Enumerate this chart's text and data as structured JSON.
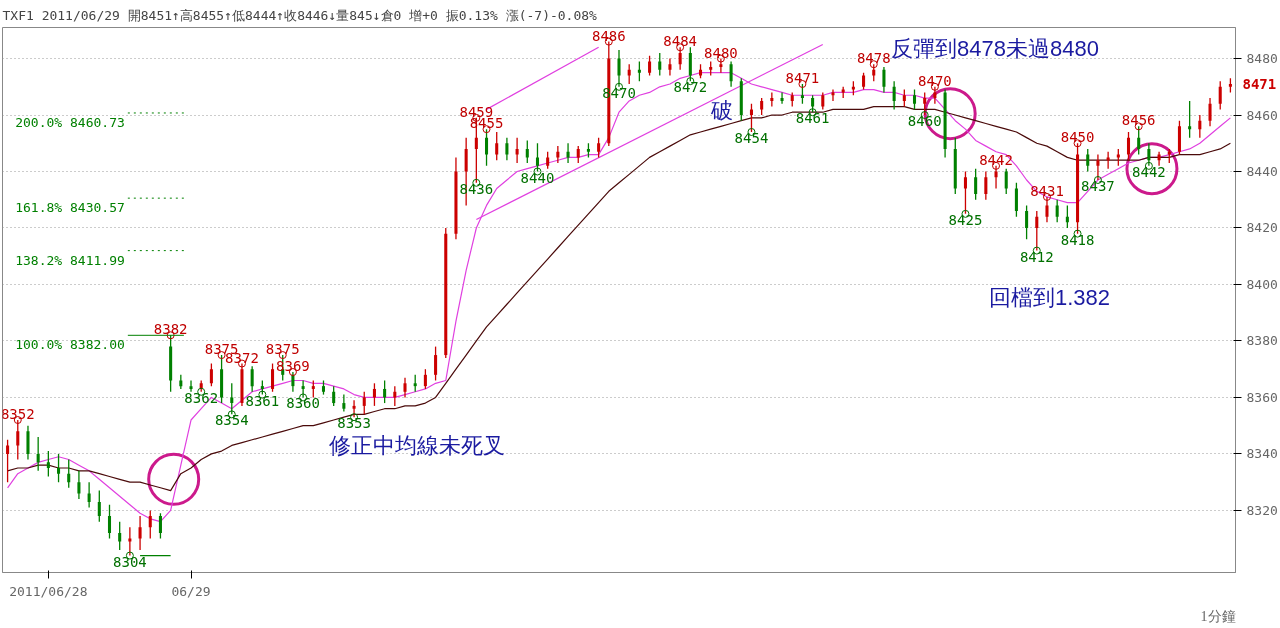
{
  "chart_data": {
    "type": "candlestick",
    "title": "TXF1 2011/06/29 開8451↑高8455↑低8444↑收8446↓量845↓倉0 增+0 振0.13% 漲(-7)-0.08%",
    "categories": [
      null,
      null,
      null,
      null,
      "2011/06/28",
      null,
      null,
      null,
      null,
      null,
      null,
      null,
      null,
      null,
      null,
      null,
      null,
      null,
      "06/29",
      null,
      null,
      null,
      null,
      null,
      null,
      null,
      null,
      null,
      null,
      null,
      null,
      null,
      null,
      null,
      null,
      null,
      null,
      null,
      null,
      null,
      null,
      null,
      null,
      null,
      null,
      null,
      null,
      null,
      null,
      null,
      null,
      null,
      null,
      null,
      null,
      null,
      null,
      null,
      null,
      null,
      null,
      null,
      null,
      null,
      null,
      null,
      null,
      null,
      null,
      null,
      null,
      null,
      null,
      null,
      null,
      null,
      null,
      null,
      null,
      null,
      null,
      null,
      null,
      null,
      null,
      null,
      null,
      null,
      null,
      null,
      null,
      null,
      null,
      null,
      null,
      null,
      null,
      null,
      null,
      null,
      null,
      null,
      null,
      null,
      null,
      null,
      null,
      null,
      null,
      null,
      null,
      null,
      null,
      null,
      null,
      null,
      null,
      null,
      null,
      null,
      null
    ],
    "ylim": [
      8298,
      8491
    ],
    "yticks": [
      8320,
      8340,
      8360,
      8380,
      8400,
      8420,
      8440,
      8460,
      8480
    ],
    "grid": "y",
    "marker": "none",
    "line_style": "solid",
    "series": [
      {
        "ohlc": [
          [
            8340,
            8345,
            8330,
            8343
          ],
          [
            8343,
            8352,
            8338,
            8348
          ],
          [
            8348,
            8350,
            8338,
            8340
          ],
          [
            8340,
            8346,
            8334,
            8337
          ],
          [
            8337,
            8341,
            8332,
            8335
          ],
          [
            8335,
            8340,
            8330,
            8333
          ],
          [
            8333,
            8338,
            8328,
            8330
          ],
          [
            8330,
            8334,
            8324,
            8326
          ],
          [
            8326,
            8330,
            8321,
            8323
          ],
          [
            8323,
            8327,
            8316,
            8318
          ],
          [
            8318,
            8322,
            8310,
            8312
          ],
          [
            8312,
            8316,
            8306,
            8309
          ],
          [
            8309,
            8314,
            8304,
            8310
          ],
          [
            8310,
            8318,
            8306,
            8314
          ],
          [
            8314,
            8320,
            8310,
            8318
          ],
          [
            8318,
            8319,
            8310,
            8312
          ],
          [
            8378,
            8382,
            8362,
            8366
          ],
          [
            8366,
            8368,
            8363,
            8364
          ],
          [
            8364,
            8366,
            8362,
            8363
          ],
          [
            8363,
            8366,
            8362,
            8365
          ],
          [
            8365,
            8372,
            8364,
            8370
          ],
          [
            8370,
            8375,
            8358,
            8360
          ],
          [
            8360,
            8365,
            8354,
            8358
          ],
          [
            8358,
            8372,
            8357,
            8370
          ],
          [
            8370,
            8371,
            8362,
            8364
          ],
          [
            8364,
            8366,
            8361,
            8363
          ],
          [
            8363,
            8372,
            8362,
            8370
          ],
          [
            8370,
            8375,
            8366,
            8368
          ],
          [
            8368,
            8369,
            8362,
            8364
          ],
          [
            8364,
            8366,
            8360,
            8363
          ],
          [
            8363,
            8366,
            8360,
            8364
          ],
          [
            8364,
            8366,
            8361,
            8362
          ],
          [
            8362,
            8364,
            8357,
            8358
          ],
          [
            8358,
            8361,
            8355,
            8356
          ],
          [
            8356,
            8359,
            8353,
            8357
          ],
          [
            8357,
            8362,
            8354,
            8360
          ],
          [
            8360,
            8365,
            8357,
            8363
          ],
          [
            8363,
            8366,
            8358,
            8360
          ],
          [
            8360,
            8364,
            8357,
            8362
          ],
          [
            8362,
            8367,
            8360,
            8365
          ],
          [
            8365,
            8368,
            8362,
            8364
          ],
          [
            8364,
            8370,
            8363,
            8368
          ],
          [
            8368,
            8378,
            8366,
            8375
          ],
          [
            8375,
            8420,
            8374,
            8418
          ],
          [
            8418,
            8445,
            8416,
            8440
          ],
          [
            8440,
            8452,
            8428,
            8448
          ],
          [
            8448,
            8459,
            8436,
            8452
          ],
          [
            8452,
            8455,
            8442,
            8446
          ],
          [
            8446,
            8454,
            8444,
            8450
          ],
          [
            8450,
            8452,
            8444,
            8446
          ],
          [
            8446,
            8452,
            8443,
            8448
          ],
          [
            8448,
            8451,
            8443,
            8445
          ],
          [
            8445,
            8450,
            8440,
            8442
          ],
          [
            8442,
            8447,
            8441,
            8445
          ],
          [
            8445,
            8449,
            8443,
            8447
          ],
          [
            8447,
            8450,
            8443,
            8445
          ],
          [
            8445,
            8449,
            8443,
            8448
          ],
          [
            8448,
            8450,
            8445,
            8447
          ],
          [
            8447,
            8452,
            8445,
            8450
          ],
          [
            8450,
            8486,
            8449,
            8480
          ],
          [
            8480,
            8483,
            8470,
            8474
          ],
          [
            8474,
            8478,
            8471,
            8476
          ],
          [
            8476,
            8479,
            8472,
            8475
          ],
          [
            8475,
            8481,
            8474,
            8479
          ],
          [
            8479,
            8482,
            8474,
            8476
          ],
          [
            8476,
            8480,
            8474,
            8478
          ],
          [
            8478,
            8484,
            8476,
            8482
          ],
          [
            8482,
            8484,
            8472,
            8474
          ],
          [
            8474,
            8478,
            8473,
            8476
          ],
          [
            8476,
            8479,
            8474,
            8477
          ],
          [
            8477,
            8480,
            8475,
            8478
          ],
          [
            8478,
            8479,
            8470,
            8472
          ],
          [
            8472,
            8473,
            8458,
            8460
          ],
          [
            8460,
            8464,
            8454,
            8462
          ],
          [
            8462,
            8466,
            8460,
            8465
          ],
          [
            8465,
            8468,
            8463,
            8466
          ],
          [
            8466,
            8468,
            8464,
            8465
          ],
          [
            8465,
            8468,
            8463,
            8467
          ],
          [
            8467,
            8471,
            8464,
            8466
          ],
          [
            8466,
            8467,
            8461,
            8463
          ],
          [
            8463,
            8468,
            8462,
            8467
          ],
          [
            8467,
            8469,
            8465,
            8468
          ],
          [
            8468,
            8470,
            8466,
            8469
          ],
          [
            8469,
            8472,
            8467,
            8470
          ],
          [
            8470,
            8475,
            8469,
            8474
          ],
          [
            8474,
            8478,
            8472,
            8476
          ],
          [
            8476,
            8477,
            8468,
            8470
          ],
          [
            8470,
            8472,
            8462,
            8465
          ],
          [
            8465,
            8469,
            8463,
            8467
          ],
          [
            8467,
            8469,
            8462,
            8464
          ],
          [
            8464,
            8468,
            8460,
            8466
          ],
          [
            8466,
            8470,
            8464,
            8468
          ],
          [
            8468,
            8469,
            8445,
            8448
          ],
          [
            8448,
            8452,
            8432,
            8434
          ],
          [
            8434,
            8440,
            8425,
            8438
          ],
          [
            8438,
            8441,
            8430,
            8432
          ],
          [
            8432,
            8440,
            8430,
            8438
          ],
          [
            8438,
            8442,
            8434,
            8440
          ],
          [
            8440,
            8441,
            8432,
            8434
          ],
          [
            8434,
            8436,
            8424,
            8426
          ],
          [
            8426,
            8428,
            8416,
            8420
          ],
          [
            8420,
            8426,
            8412,
            8424
          ],
          [
            8424,
            8431,
            8422,
            8428
          ],
          [
            8428,
            8430,
            8422,
            8424
          ],
          [
            8424,
            8428,
            8420,
            8422
          ],
          [
            8422,
            8450,
            8418,
            8446
          ],
          [
            8446,
            8448,
            8440,
            8442
          ],
          [
            8442,
            8446,
            8437,
            8444
          ],
          [
            8444,
            8447,
            8441,
            8445
          ],
          [
            8445,
            8448,
            8442,
            8446
          ],
          [
            8446,
            8454,
            8444,
            8452
          ],
          [
            8452,
            8456,
            8446,
            8448
          ],
          [
            8448,
            8450,
            8442,
            8444
          ],
          [
            8444,
            8447,
            8442,
            8446
          ],
          [
            8446,
            8448,
            8443,
            8447
          ],
          [
            8447,
            8458,
            8446,
            8456
          ],
          [
            8456,
            8465,
            8452,
            8455
          ],
          [
            8455,
            8460,
            8452,
            8458
          ],
          [
            8458,
            8466,
            8456,
            8464
          ],
          [
            8464,
            8472,
            8462,
            8470
          ],
          [
            8470,
            8473,
            8468,
            8471
          ]
        ]
      },
      {
        "type": "line",
        "color": "#e040e0",
        "values": [
          8328,
          8333,
          8335,
          8337,
          8338,
          8339,
          8338,
          8336,
          8334,
          8331,
          8328,
          8325,
          8322,
          8319,
          8317,
          8316,
          8320,
          8336,
          8352,
          8356,
          8360,
          8358,
          8356,
          8359,
          8362,
          8363,
          8364,
          8365,
          8366,
          8366,
          8365,
          8365,
          8364,
          8363,
          8361,
          8360,
          8360,
          8360,
          8360,
          8361,
          8362,
          8363,
          8365,
          8366,
          8387,
          8405,
          8420,
          8428,
          8434,
          8437,
          8440,
          8441,
          8442,
          8443,
          8444,
          8445,
          8445,
          8446,
          8446,
          8452,
          8461,
          8465,
          8467,
          8468,
          8470,
          8471,
          8473,
          8474,
          8475,
          8475,
          8475,
          8475,
          8473,
          8471,
          8470,
          8469,
          8468,
          8467,
          8467,
          8467,
          8467,
          8468,
          8468,
          8468,
          8469,
          8469,
          8468,
          8468,
          8467,
          8467,
          8466,
          8466,
          8462,
          8458,
          8455,
          8451,
          8449,
          8447,
          8446,
          8442,
          8437,
          8433,
          8431,
          8430,
          8429,
          8429,
          8433,
          8437,
          8439,
          8441,
          8443,
          8444,
          8445,
          8445,
          8446,
          8447,
          8448,
          8450,
          8453,
          8456,
          8459
        ]
      },
      {
        "type": "line",
        "color": "#4a0a0a",
        "values": [
          8334,
          8335,
          8335,
          8336,
          8336,
          8335,
          8335,
          8334,
          8334,
          8333,
          8332,
          8331,
          8330,
          8330,
          8329,
          8328,
          8327,
          8333,
          8335,
          8338,
          8340,
          8341,
          8343,
          8344,
          8345,
          8346,
          8347,
          8348,
          8349,
          8350,
          8350,
          8351,
          8352,
          8353,
          8354,
          8354,
          8355,
          8356,
          8356,
          8357,
          8357,
          8358,
          8360,
          8365,
          8370,
          8375,
          8380,
          8385,
          8389,
          8393,
          8397,
          8401,
          8405,
          8409,
          8413,
          8417,
          8421,
          8425,
          8429,
          8433,
          8436,
          8439,
          8442,
          8445,
          8447,
          8449,
          8451,
          8453,
          8454,
          8455,
          8456,
          8457,
          8458,
          8459,
          8459,
          8460,
          8460,
          8461,
          8461,
          8461,
          8461,
          8462,
          8462,
          8462,
          8462,
          8463,
          8463,
          8463,
          8463,
          8462,
          8462,
          8462,
          8461,
          8460,
          8459,
          8458,
          8457,
          8456,
          8455,
          8454,
          8452,
          8450,
          8449,
          8447,
          8445,
          8444,
          8444,
          8444,
          8444,
          8444,
          8444,
          8444,
          8445,
          8445,
          8445,
          8446,
          8446,
          8446,
          8447,
          8448,
          8450
        ]
      },
      {
        "type": "line",
        "color": "#e040e0",
        "values": [
          null,
          null,
          null,
          null,
          null,
          null,
          null,
          null,
          null,
          null,
          null,
          null,
          null,
          null,
          null,
          null,
          null,
          null,
          null,
          null,
          null,
          null,
          null,
          null,
          null,
          null,
          null,
          null,
          null,
          null,
          null,
          null,
          null,
          null,
          null,
          null,
          null,
          null,
          null,
          null,
          null,
          null,
          null,
          null,
          null,
          null,
          null,
          8462,
          null,
          null,
          null,
          null,
          null,
          null,
          null,
          null,
          null,
          null,
          8484,
          null,
          null,
          null,
          null,
          null,
          null,
          null,
          null,
          null,
          null,
          null,
          null,
          null,
          null,
          null,
          null,
          null,
          null,
          null,
          null,
          null,
          null,
          null,
          null,
          null,
          null,
          null,
          null,
          null,
          null,
          null,
          null,
          null,
          null,
          null,
          null,
          null,
          null,
          null,
          null,
          null,
          null,
          null,
          null,
          null,
          null,
          null,
          null,
          null,
          null,
          null,
          null,
          null,
          null,
          null,
          null,
          null,
          null,
          null,
          null,
          null,
          null
        ]
      },
      {
        "type": "line",
        "color": "#e040e0",
        "values": [
          null,
          null,
          null,
          null,
          null,
          null,
          null,
          null,
          null,
          null,
          null,
          null,
          null,
          null,
          null,
          null,
          null,
          null,
          null,
          null,
          null,
          null,
          null,
          null,
          null,
          null,
          null,
          null,
          null,
          null,
          null,
          null,
          null,
          null,
          null,
          null,
          null,
          null,
          null,
          null,
          null,
          null,
          null,
          null,
          null,
          null,
          8423,
          null,
          null,
          null,
          null,
          null,
          null,
          null,
          null,
          null,
          null,
          null,
          null,
          null,
          null,
          null,
          null,
          null,
          null,
          null,
          null,
          null,
          null,
          null,
          null,
          null,
          null,
          null,
          null,
          null,
          null,
          null,
          null,
          null,
          8485,
          null,
          null,
          null,
          null,
          null,
          null,
          null,
          null,
          null,
          null,
          null,
          null,
          null,
          null,
          null,
          null,
          null,
          null,
          null,
          null,
          null,
          null,
          null,
          null,
          null,
          null,
          null,
          null,
          null,
          null,
          null,
          null,
          null,
          null,
          null,
          null,
          null,
          null,
          null,
          null
        ]
      },
      {
        "type": "line",
        "color": "#008000",
        "values": [
          null,
          null,
          null,
          null,
          null,
          null,
          null,
          null,
          null,
          null,
          null,
          null,
          null,
          8304,
          null,
          null,
          8304,
          null,
          null,
          null,
          null,
          null,
          null,
          null,
          null,
          null,
          null,
          null,
          null,
          null,
          null,
          null,
          null,
          null,
          null,
          null,
          null,
          null,
          null,
          null,
          null,
          null,
          null,
          null,
          null,
          null,
          null,
          null,
          null,
          null,
          null,
          null,
          null,
          null,
          null,
          null,
          null,
          null,
          null,
          null,
          null,
          null,
          null,
          null,
          null,
          null,
          null,
          null,
          null,
          null,
          null,
          null,
          null,
          null,
          null,
          null,
          null,
          null,
          null,
          null,
          null,
          null,
          null,
          null,
          null,
          null,
          null,
          null,
          null,
          null,
          null,
          null,
          null,
          null,
          null,
          null,
          null,
          null,
          null,
          null,
          null,
          null,
          null,
          null,
          null,
          null,
          null,
          null,
          null,
          null,
          null,
          null,
          null,
          null,
          null,
          null,
          null,
          null,
          null,
          null,
          null
        ]
      },
      {
        "type": "scatter",
        "color": "#c00000",
        "marker": "circle",
        "data_labels": true,
        "values": [
          null,
          8352,
          null,
          null,
          null,
          null,
          null,
          null,
          null,
          null,
          null,
          null,
          null,
          null,
          null,
          null,
          8382,
          null,
          null,
          null,
          null,
          8375,
          null,
          8372,
          null,
          null,
          null,
          8375,
          8369,
          null,
          null,
          null,
          null,
          null,
          null,
          null,
          null,
          null,
          null,
          null,
          null,
          null,
          null,
          null,
          null,
          null,
          8459,
          8455,
          null,
          null,
          null,
          null,
          null,
          null,
          null,
          null,
          null,
          null,
          null,
          8486,
          null,
          null,
          null,
          null,
          null,
          null,
          8484,
          null,
          null,
          null,
          8480,
          null,
          null,
          null,
          null,
          null,
          null,
          null,
          8471,
          null,
          null,
          null,
          null,
          null,
          null,
          8478,
          null,
          null,
          null,
          null,
          null,
          8470,
          null,
          null,
          null,
          null,
          null,
          8442,
          null,
          null,
          null,
          null,
          8431,
          null,
          null,
          8450,
          null,
          null,
          null,
          null,
          null,
          8456,
          null,
          null,
          null,
          null,
          null,
          null,
          null,
          null,
          null
        ]
      },
      {
        "type": "scatter",
        "color": "#007000",
        "marker": "circle",
        "data_labels": true,
        "values": [
          null,
          null,
          null,
          null,
          null,
          null,
          null,
          null,
          null,
          null,
          null,
          null,
          8304,
          null,
          null,
          null,
          null,
          null,
          null,
          8362,
          null,
          null,
          8354,
          null,
          null,
          8361,
          null,
          null,
          null,
          8360,
          null,
          null,
          null,
          null,
          8353,
          null,
          null,
          null,
          null,
          null,
          null,
          null,
          null,
          null,
          null,
          null,
          8436,
          null,
          null,
          null,
          null,
          null,
          8440,
          null,
          null,
          null,
          null,
          null,
          null,
          null,
          8470,
          null,
          null,
          null,
          null,
          null,
          null,
          8472,
          null,
          null,
          null,
          null,
          null,
          8454,
          null,
          null,
          null,
          null,
          null,
          8461,
          null,
          null,
          null,
          null,
          null,
          null,
          null,
          null,
          null,
          null,
          8460,
          null,
          null,
          null,
          8425,
          null,
          null,
          null,
          null,
          null,
          null,
          8412,
          null,
          null,
          null,
          8418,
          null,
          8437,
          null,
          null,
          null,
          null,
          8442,
          null,
          null,
          null,
          null,
          null,
          null,
          null,
          null
        ]
      }
    ],
    "ref_lines": [
      {
        "axis": "y",
        "value": 8460.73,
        "label": "200.0% 8460.73",
        "color": "#008000",
        "line_style": "dotted"
      },
      {
        "axis": "y",
        "value": 8430.57,
        "label": "161.8% 8430.57",
        "color": "#008000",
        "line_style": "dotted"
      },
      {
        "axis": "y",
        "value": 8411.99,
        "label": "138.2% 8411.99",
        "color": "#008000",
        "line_style": "dotted"
      },
      {
        "axis": "y",
        "value": 8382.0,
        "label": "100.0% 8382.00",
        "color": "#008000",
        "line_style": "solid"
      }
    ],
    "annotations": [
      "修正中均線未死叉",
      "破",
      "反彈到8478未過8480",
      "回檔到1.382",
      "1分鐘",
      "8471"
    ]
  }
}
